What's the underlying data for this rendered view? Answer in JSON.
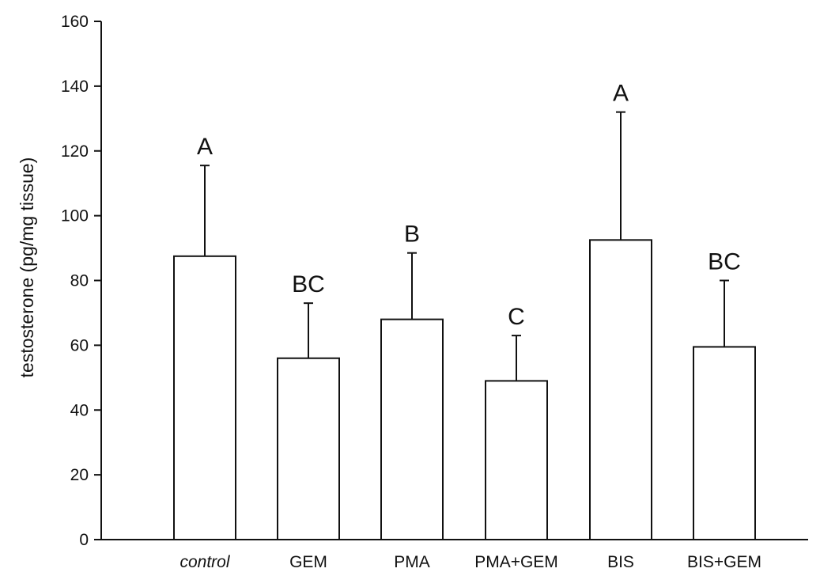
{
  "chart_data": {
    "type": "bar",
    "title": "",
    "xlabel": "",
    "ylabel": "testosterone (pg/mg tissue)",
    "ylim": [
      0,
      160
    ],
    "yticks": [
      0,
      20,
      40,
      60,
      80,
      100,
      120,
      140,
      160
    ],
    "categories": [
      "control",
      "GEM",
      "PMA",
      "PMA+GEM",
      "BIS",
      "BIS+GEM"
    ],
    "category_italic": [
      true,
      false,
      false,
      false,
      false,
      false
    ],
    "values": [
      87.5,
      56,
      68,
      49,
      92.5,
      59.5
    ],
    "error_upper": [
      115.5,
      73,
      88.5,
      63,
      132,
      80
    ],
    "significance_labels": [
      "A",
      "BC",
      "B",
      "C",
      "A",
      "BC"
    ],
    "grid": false,
    "legend": "none"
  }
}
